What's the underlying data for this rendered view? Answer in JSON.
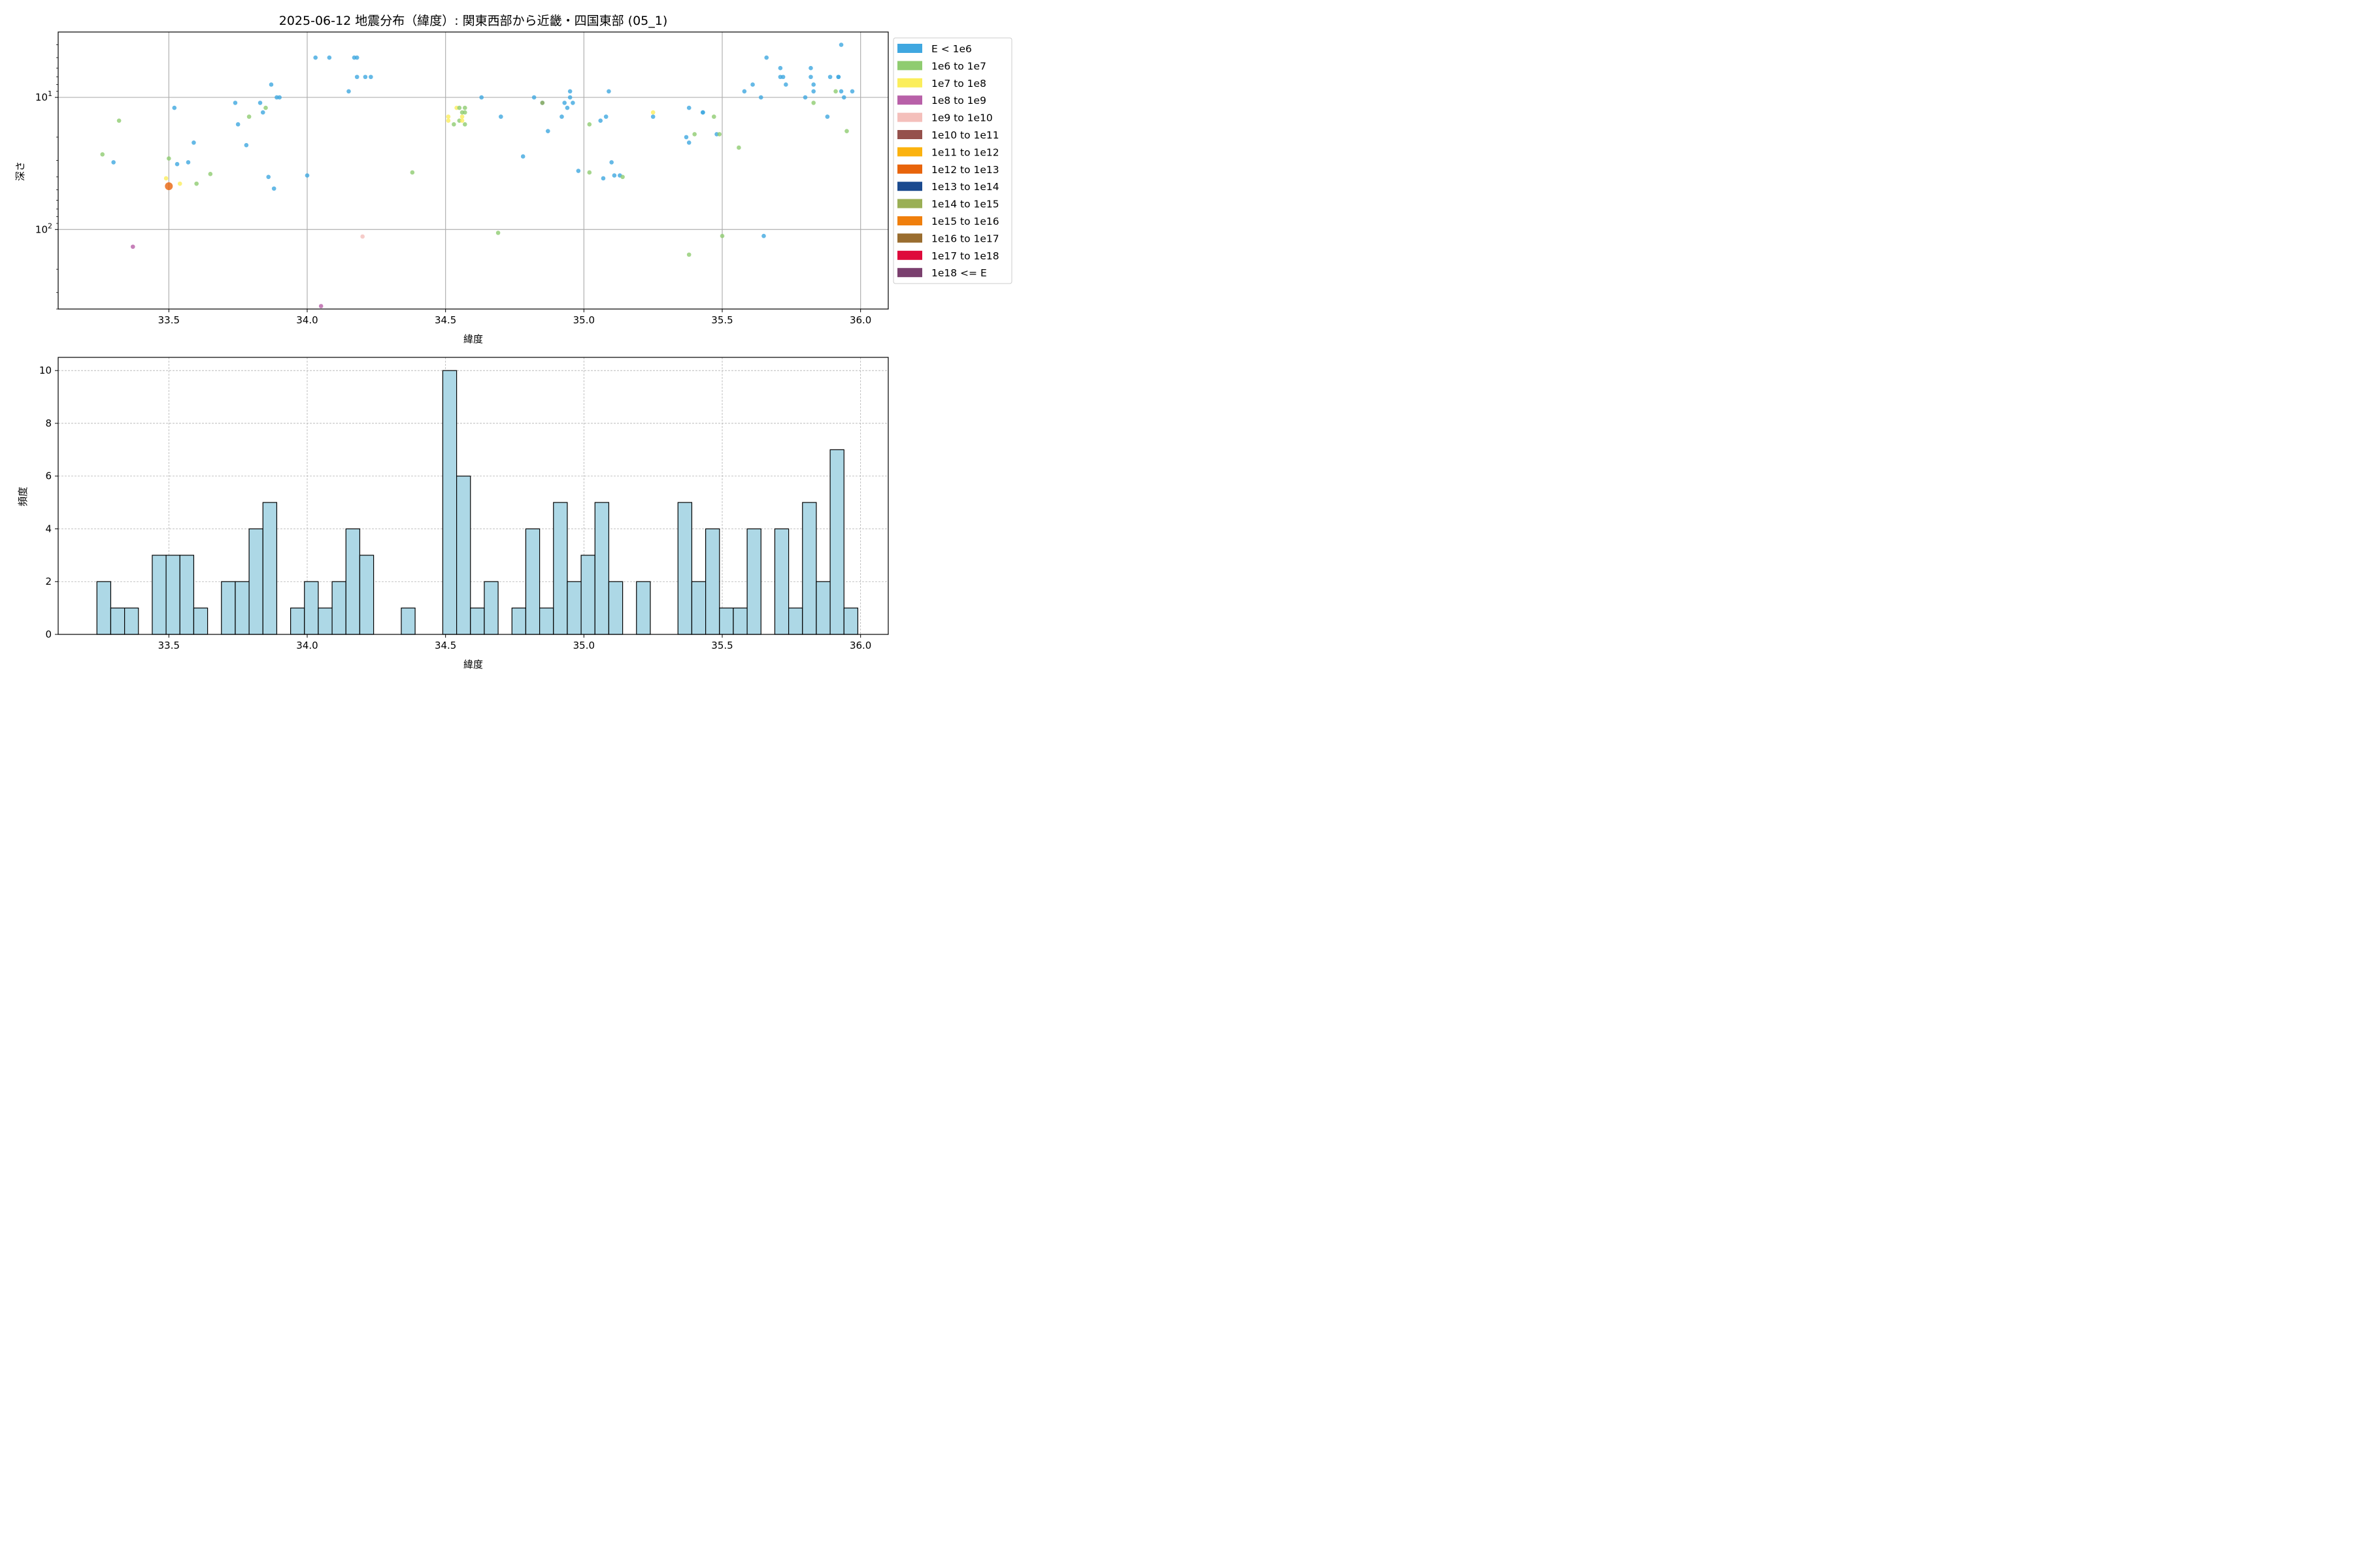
{
  "figure_title": "2025-06-12 地震分布（緯度）: 関東西部から近畿・四国東部 (05_1)",
  "chart_data": [
    {
      "type": "scatter",
      "title": "2025-06-12 地震分布（緯度）: 関東西部から近畿・四国東部 (05_1)",
      "xlabel": "緯度",
      "ylabel": "深さ",
      "xlim": [
        33.1,
        36.1
      ],
      "ylim": [
        400,
        3.2
      ],
      "yscale": "log",
      "y_inverted": true,
      "x_ticks": [
        "33.5",
        "34.0",
        "34.5",
        "35.0",
        "35.5",
        "36.0"
      ],
      "x_tick_values": [
        33.5,
        34.0,
        34.5,
        35.0,
        35.5,
        36.0
      ],
      "y_ticks": [
        {
          "value": 10,
          "base": "10",
          "exp": "1"
        },
        {
          "value": 100,
          "base": "10",
          "exp": "2"
        }
      ],
      "grid": true,
      "legend_position": "outside-right",
      "legend": [
        {
          "label": "E < 1e6",
          "color": "#3fa7e0"
        },
        {
          "label": "1e6 to 1e7",
          "color": "#8fcc70"
        },
        {
          "label": "1e7 to 1e8",
          "color": "#fbee5c"
        },
        {
          "label": "1e8 to 1e9",
          "color": "#b860a8"
        },
        {
          "label": "1e9 to 1e10",
          "color": "#f4bfbb"
        },
        {
          "label": "1e10 to 1e11",
          "color": "#95514c"
        },
        {
          "label": "1e11 to 1e12",
          "color": "#fbb20e"
        },
        {
          "label": "1e12 to 1e13",
          "color": "#e8640b"
        },
        {
          "label": "1e13 to 1e14",
          "color": "#1b4a8f"
        },
        {
          "label": "1e14 to 1e15",
          "color": "#9aaf55"
        },
        {
          "label": "1e15 to 1e16",
          "color": "#f07f0c"
        },
        {
          "label": "1e16 to 1e17",
          "color": "#9a6d2f"
        },
        {
          "label": "1e17 to 1e18",
          "color": "#de0a3b"
        },
        {
          "label": "1e18 <= E",
          "color": "#7a3f6e"
        }
      ],
      "points": [
        {
          "x": 33.26,
          "y": 27,
          "c": 1
        },
        {
          "x": 33.3,
          "y": 31,
          "c": 0
        },
        {
          "x": 33.32,
          "y": 15,
          "c": 1
        },
        {
          "x": 33.37,
          "y": 135,
          "c": 3
        },
        {
          "x": 33.49,
          "y": 41,
          "c": 2
        },
        {
          "x": 33.5,
          "y": 29,
          "c": 1
        },
        {
          "x": 33.5,
          "y": 47,
          "c": 7,
          "s": 1
        },
        {
          "x": 33.52,
          "y": 12,
          "c": 0
        },
        {
          "x": 33.53,
          "y": 32,
          "c": 0
        },
        {
          "x": 33.54,
          "y": 45,
          "c": 2
        },
        {
          "x": 33.57,
          "y": 31,
          "c": 0
        },
        {
          "x": 33.59,
          "y": 22,
          "c": 0
        },
        {
          "x": 33.6,
          "y": 45,
          "c": 1
        },
        {
          "x": 33.65,
          "y": 38,
          "c": 1
        },
        {
          "x": 33.74,
          "y": 11,
          "c": 0
        },
        {
          "x": 33.75,
          "y": 16,
          "c": 0
        },
        {
          "x": 33.78,
          "y": 23,
          "c": 0
        },
        {
          "x": 33.79,
          "y": 14,
          "c": 1
        },
        {
          "x": 33.83,
          "y": 11,
          "c": 0
        },
        {
          "x": 33.84,
          "y": 13,
          "c": 0
        },
        {
          "x": 33.85,
          "y": 12,
          "c": 1
        },
        {
          "x": 33.86,
          "y": 40,
          "c": 0
        },
        {
          "x": 33.87,
          "y": 8,
          "c": 0
        },
        {
          "x": 33.88,
          "y": 49,
          "c": 0
        },
        {
          "x": 33.89,
          "y": 10,
          "c": 0
        },
        {
          "x": 33.9,
          "y": 10,
          "c": 0
        },
        {
          "x": 34.0,
          "y": 39,
          "c": 0
        },
        {
          "x": 34.03,
          "y": 5,
          "c": 0
        },
        {
          "x": 34.05,
          "y": 380,
          "c": 3
        },
        {
          "x": 34.08,
          "y": 5,
          "c": 0
        },
        {
          "x": 34.15,
          "y": 9,
          "c": 0
        },
        {
          "x": 34.17,
          "y": 5,
          "c": 0
        },
        {
          "x": 34.18,
          "y": 5,
          "c": 0
        },
        {
          "x": 34.18,
          "y": 7,
          "c": 0
        },
        {
          "x": 34.2,
          "y": 113,
          "c": 4
        },
        {
          "x": 34.21,
          "y": 7,
          "c": 0
        },
        {
          "x": 34.23,
          "y": 7,
          "c": 0
        },
        {
          "x": 34.38,
          "y": 37,
          "c": 1
        },
        {
          "x": 34.51,
          "y": 14,
          "c": 2
        },
        {
          "x": 34.51,
          "y": 15,
          "c": 2
        },
        {
          "x": 34.53,
          "y": 16,
          "c": 1
        },
        {
          "x": 34.54,
          "y": 12,
          "c": 2
        },
        {
          "x": 34.55,
          "y": 12,
          "c": 1
        },
        {
          "x": 34.55,
          "y": 15,
          "c": 1
        },
        {
          "x": 34.56,
          "y": 14,
          "c": 2
        },
        {
          "x": 34.56,
          "y": 13,
          "c": 1
        },
        {
          "x": 34.57,
          "y": 12,
          "c": 1
        },
        {
          "x": 34.57,
          "y": 16,
          "c": 1
        },
        {
          "x": 34.57,
          "y": 13,
          "c": 1
        },
        {
          "x": 34.56,
          "y": 15,
          "c": 2
        },
        {
          "x": 34.63,
          "y": 10,
          "c": 0
        },
        {
          "x": 34.69,
          "y": 106,
          "c": 1
        },
        {
          "x": 34.7,
          "y": 14,
          "c": 0
        },
        {
          "x": 34.78,
          "y": 28,
          "c": 0
        },
        {
          "x": 34.82,
          "y": 10,
          "c": 0
        },
        {
          "x": 34.85,
          "y": 11,
          "c": 0
        },
        {
          "x": 34.85,
          "y": 11,
          "c": 9
        },
        {
          "x": 34.87,
          "y": 18,
          "c": 0
        },
        {
          "x": 34.92,
          "y": 14,
          "c": 0
        },
        {
          "x": 34.93,
          "y": 11,
          "c": 0
        },
        {
          "x": 34.94,
          "y": 12,
          "c": 0
        },
        {
          "x": 34.95,
          "y": 10,
          "c": 0
        },
        {
          "x": 34.95,
          "y": 9,
          "c": 0
        },
        {
          "x": 34.96,
          "y": 11,
          "c": 0
        },
        {
          "x": 34.98,
          "y": 36,
          "c": 0
        },
        {
          "x": 35.02,
          "y": 16,
          "c": 1
        },
        {
          "x": 35.02,
          "y": 37,
          "c": 1
        },
        {
          "x": 35.06,
          "y": 15,
          "c": 0
        },
        {
          "x": 35.07,
          "y": 41,
          "c": 0
        },
        {
          "x": 35.08,
          "y": 14,
          "c": 0
        },
        {
          "x": 35.09,
          "y": 9,
          "c": 0
        },
        {
          "x": 35.1,
          "y": 31,
          "c": 0
        },
        {
          "x": 35.11,
          "y": 39,
          "c": 0
        },
        {
          "x": 35.13,
          "y": 39,
          "c": 0
        },
        {
          "x": 35.14,
          "y": 40,
          "c": 1
        },
        {
          "x": 35.25,
          "y": 14,
          "c": 0
        },
        {
          "x": 35.25,
          "y": 13,
          "c": 2
        },
        {
          "x": 35.37,
          "y": 20,
          "c": 0
        },
        {
          "x": 35.38,
          "y": 12,
          "c": 0
        },
        {
          "x": 35.38,
          "y": 22,
          "c": 0
        },
        {
          "x": 35.38,
          "y": 155,
          "c": 1
        },
        {
          "x": 35.4,
          "y": 19,
          "c": 1
        },
        {
          "x": 35.43,
          "y": 13,
          "c": 0
        },
        {
          "x": 35.43,
          "y": 13,
          "c": 0
        },
        {
          "x": 35.47,
          "y": 14,
          "c": 1
        },
        {
          "x": 35.48,
          "y": 19,
          "c": 0
        },
        {
          "x": 35.49,
          "y": 19,
          "c": 1
        },
        {
          "x": 35.5,
          "y": 112,
          "c": 1
        },
        {
          "x": 35.56,
          "y": 24,
          "c": 1
        },
        {
          "x": 35.58,
          "y": 9,
          "c": 0
        },
        {
          "x": 35.61,
          "y": 8,
          "c": 0
        },
        {
          "x": 35.64,
          "y": 10,
          "c": 0
        },
        {
          "x": 35.65,
          "y": 112,
          "c": 0
        },
        {
          "x": 35.66,
          "y": 5,
          "c": 0
        },
        {
          "x": 35.71,
          "y": 6,
          "c": 0
        },
        {
          "x": 35.71,
          "y": 7,
          "c": 0
        },
        {
          "x": 35.72,
          "y": 7,
          "c": 0
        },
        {
          "x": 35.73,
          "y": 8,
          "c": 0
        },
        {
          "x": 35.8,
          "y": 10,
          "c": 0
        },
        {
          "x": 35.82,
          "y": 6,
          "c": 0
        },
        {
          "x": 35.82,
          "y": 7,
          "c": 0
        },
        {
          "x": 35.83,
          "y": 8,
          "c": 0
        },
        {
          "x": 35.83,
          "y": 11,
          "c": 1
        },
        {
          "x": 35.83,
          "y": 9,
          "c": 0
        },
        {
          "x": 35.88,
          "y": 14,
          "c": 0
        },
        {
          "x": 35.89,
          "y": 7,
          "c": 0
        },
        {
          "x": 35.91,
          "y": 9,
          "c": 1
        },
        {
          "x": 35.92,
          "y": 7,
          "c": 0
        },
        {
          "x": 35.92,
          "y": 7,
          "c": 0
        },
        {
          "x": 35.93,
          "y": 9,
          "c": 0
        },
        {
          "x": 35.93,
          "y": 4,
          "c": 0
        },
        {
          "x": 35.94,
          "y": 10,
          "c": 0
        },
        {
          "x": 35.95,
          "y": 18,
          "c": 1
        },
        {
          "x": 35.97,
          "y": 9,
          "c": 0
        }
      ]
    },
    {
      "type": "bar",
      "xlabel": "緯度",
      "ylabel": "頻度",
      "xlim": [
        33.1,
        36.1
      ],
      "ylim": [
        0,
        10.5
      ],
      "x_ticks": [
        "33.5",
        "34.0",
        "34.5",
        "35.0",
        "35.5",
        "36.0"
      ],
      "x_tick_values": [
        33.5,
        34.0,
        34.5,
        35.0,
        35.5,
        36.0
      ],
      "y_ticks": [
        "0",
        "2",
        "4",
        "6",
        "8",
        "10"
      ],
      "y_tick_values": [
        0,
        2,
        4,
        6,
        8,
        10
      ],
      "grid": true,
      "bar_color": "#add8e6",
      "bin_start": 33.24,
      "bin_width": 0.05,
      "values": [
        2,
        1,
        1,
        0,
        3,
        3,
        3,
        1,
        0,
        2,
        2,
        4,
        5,
        0,
        1,
        2,
        1,
        2,
        4,
        3,
        0,
        0,
        1,
        0,
        0,
        10,
        6,
        1,
        2,
        0,
        1,
        4,
        1,
        5,
        2,
        3,
        5,
        2,
        0,
        2,
        0,
        0,
        5,
        2,
        4,
        1,
        1,
        4,
        0,
        4,
        1,
        5,
        2,
        7,
        1
      ]
    }
  ]
}
